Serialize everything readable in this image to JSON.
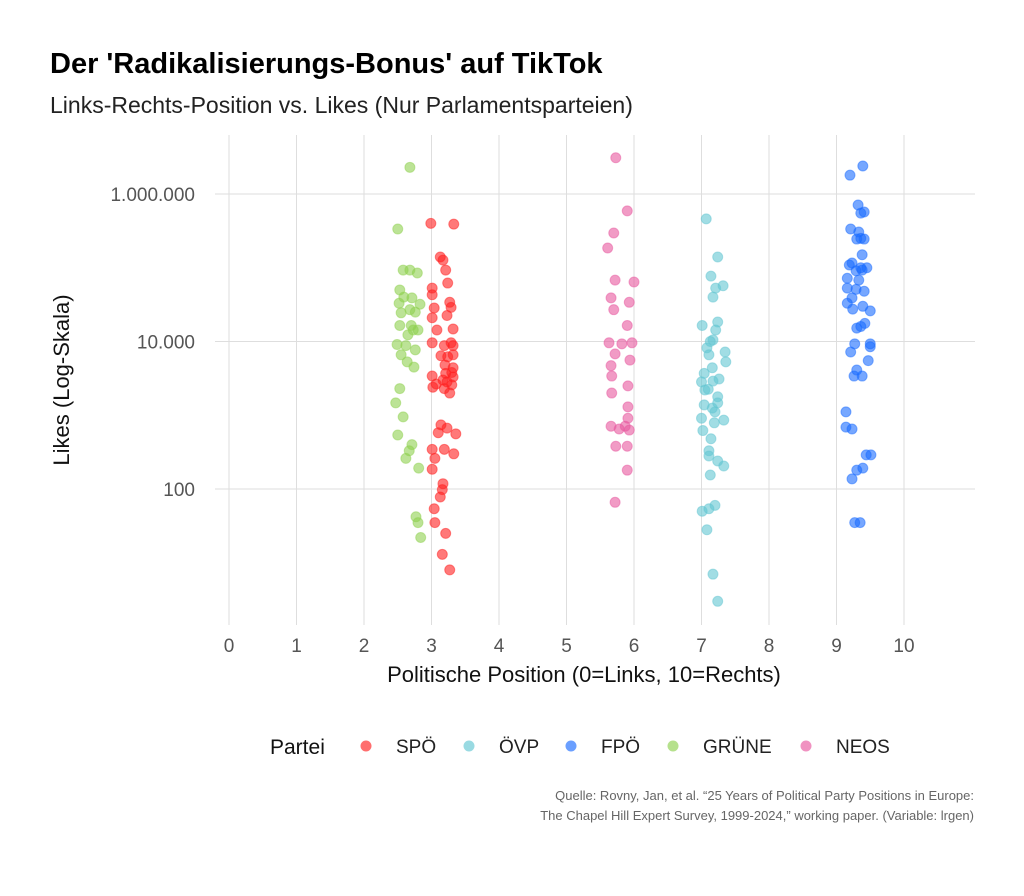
{
  "title": "Der 'Radikalisierungs-Bonus' auf TikTok",
  "subtitle": "Links-Rechts-Position vs. Likes (Nur Parlamentsparteien)",
  "caption_line1": "Quelle: Rovny, Jan, et al. “25 Years of Political Party Positions in Europe:",
  "caption_line2": "The Chapel Hill Expert Survey, 1999-2024,” working paper. (Variable: lrgen)",
  "chart_data": {
    "type": "scatter",
    "xlabel": "Politische Position (0=Links, 10=Rechts)",
    "ylabel": "Likes (Log-Skala)",
    "x_ticks": [
      "0",
      "1",
      "2",
      "3",
      "4",
      "5",
      "6",
      "7",
      "8",
      "9",
      "10"
    ],
    "x_tick_values": [
      0,
      1,
      2,
      3,
      4,
      5,
      6,
      7,
      8,
      9,
      10
    ],
    "y_ticks": [
      "1.000.000",
      "10.000",
      "100"
    ],
    "y_tick_values": [
      1000000,
      10000,
      100
    ],
    "y_scale": "log10",
    "xlim": [
      -0.2,
      11
    ],
    "ylim": [
      1.5,
      6300000
    ],
    "grid": true,
    "legend_title": "Partei",
    "legend_position": "bottom",
    "series": [
      {
        "name": "SPÖ",
        "color": "#ff2020",
        "points": [
          [
            2.99,
            400000
          ],
          [
            3.33,
            390000
          ],
          [
            3.13,
            140000
          ],
          [
            3.17,
            127000
          ],
          [
            3.21,
            93000
          ],
          [
            3.24,
            62000
          ],
          [
            3.01,
            53000
          ],
          [
            3.01,
            43000
          ],
          [
            3.27,
            34000
          ],
          [
            3.04,
            28500
          ],
          [
            3.29,
            29000
          ],
          [
            3.23,
            22500
          ],
          [
            3.01,
            21000
          ],
          [
            3.32,
            14800
          ],
          [
            3.08,
            14300
          ],
          [
            3.01,
            9600
          ],
          [
            3.29,
            9600
          ],
          [
            3.32,
            8800
          ],
          [
            3.19,
            8800
          ],
          [
            3.24,
            6200
          ],
          [
            3.32,
            6600
          ],
          [
            3.14,
            6400
          ],
          [
            3.21,
            3700
          ],
          [
            3.3,
            3800
          ],
          [
            3.2,
            4800
          ],
          [
            3.32,
            4400
          ],
          [
            3.01,
            3400
          ],
          [
            3.07,
            2650
          ],
          [
            3.17,
            3000
          ],
          [
            3.19,
            2300
          ],
          [
            3.3,
            2580
          ],
          [
            3.23,
            2830
          ],
          [
            3.02,
            2400
          ],
          [
            3.32,
            3300
          ],
          [
            3.27,
            2000
          ],
          [
            3.14,
            740
          ],
          [
            3.23,
            670
          ],
          [
            3.36,
            560
          ],
          [
            3.1,
            580
          ],
          [
            3.01,
            345
          ],
          [
            3.19,
            345
          ],
          [
            3.05,
            260
          ],
          [
            3.33,
            300
          ],
          [
            3.01,
            185
          ],
          [
            3.17,
            118
          ],
          [
            3.16,
            98
          ],
          [
            3.04,
            54
          ],
          [
            3.13,
            78
          ],
          [
            3.05,
            35
          ],
          [
            3.21,
            25
          ],
          [
            3.16,
            13
          ],
          [
            3.27,
            8
          ]
        ]
      },
      {
        "name": "ÖVP",
        "color": "#63c6d2",
        "points": [
          [
            7.07,
            460000
          ],
          [
            7.24,
            140000
          ],
          [
            7.14,
            77000
          ],
          [
            7.21,
            53000
          ],
          [
            7.32,
            57000
          ],
          [
            7.17,
            40000
          ],
          [
            7.01,
            16500
          ],
          [
            7.24,
            18400
          ],
          [
            7.21,
            14300
          ],
          [
            7.17,
            10500
          ],
          [
            7.13,
            10000
          ],
          [
            7.08,
            8200
          ],
          [
            7.35,
            7200
          ],
          [
            7.11,
            6600
          ],
          [
            7.36,
            5300
          ],
          [
            7.16,
            4400
          ],
          [
            7.04,
            3700
          ],
          [
            7.26,
            3100
          ],
          [
            7.0,
            2830
          ],
          [
            7.17,
            2900
          ],
          [
            7.05,
            2200
          ],
          [
            7.24,
            1780
          ],
          [
            7.1,
            2250
          ],
          [
            7.24,
            1470
          ],
          [
            7.04,
            1380
          ],
          [
            7.2,
            1110
          ],
          [
            7.16,
            1250
          ],
          [
            7.0,
            910
          ],
          [
            7.33,
            860
          ],
          [
            7.19,
            790
          ],
          [
            7.02,
            620
          ],
          [
            7.14,
            480
          ],
          [
            7.11,
            330
          ],
          [
            7.11,
            280
          ],
          [
            7.24,
            240
          ],
          [
            7.33,
            205
          ],
          [
            7.13,
            155
          ],
          [
            7.2,
            60
          ],
          [
            7.01,
            50
          ],
          [
            7.11,
            54
          ],
          [
            7.08,
            28
          ],
          [
            7.17,
            7
          ],
          [
            7.24,
            3
          ]
        ]
      },
      {
        "name": "FPÖ",
        "color": "#1a6cff",
        "points": [
          [
            9.39,
            2400000
          ],
          [
            9.2,
            1800000
          ],
          [
            9.32,
            710000
          ],
          [
            9.36,
            550000
          ],
          [
            9.41,
            570000
          ],
          [
            9.21,
            335000
          ],
          [
            9.33,
            305000
          ],
          [
            9.36,
            250000
          ],
          [
            9.3,
            245000
          ],
          [
            9.41,
            245000
          ],
          [
            9.38,
            150000
          ],
          [
            9.23,
            116000
          ],
          [
            9.19,
            109000
          ],
          [
            9.45,
            100000
          ],
          [
            9.36,
            100000
          ],
          [
            9.29,
            91000
          ],
          [
            9.16,
            72000
          ],
          [
            9.33,
            68000
          ],
          [
            9.38,
            93000
          ],
          [
            9.16,
            53000
          ],
          [
            9.29,
            51000
          ],
          [
            9.41,
            48000
          ],
          [
            9.23,
            39000
          ],
          [
            9.16,
            33000
          ],
          [
            9.39,
            30000
          ],
          [
            9.24,
            27500
          ],
          [
            9.5,
            26000
          ],
          [
            9.42,
            17600
          ],
          [
            9.3,
            15200
          ],
          [
            9.36,
            16000
          ],
          [
            9.27,
            9300
          ],
          [
            9.21,
            7200
          ],
          [
            9.5,
            8500
          ],
          [
            9.5,
            9300
          ],
          [
            9.47,
            5500
          ],
          [
            9.3,
            4100
          ],
          [
            9.38,
            3400
          ],
          [
            9.26,
            3400
          ],
          [
            9.14,
            1110
          ],
          [
            9.14,
            690
          ],
          [
            9.23,
            650
          ],
          [
            9.44,
            290
          ],
          [
            9.51,
            290
          ],
          [
            9.39,
            192
          ],
          [
            9.3,
            180
          ],
          [
            9.23,
            137
          ],
          [
            9.27,
            35
          ],
          [
            9.35,
            35
          ]
        ]
      },
      {
        "name": "GRÜNE",
        "color": "#8fd150",
        "points": [
          [
            2.68,
            2300000
          ],
          [
            2.5,
            335000
          ],
          [
            2.58,
            93000
          ],
          [
            2.68,
            93000
          ],
          [
            2.79,
            85000
          ],
          [
            2.53,
            50000
          ],
          [
            2.59,
            40000
          ],
          [
            2.71,
            39000
          ],
          [
            2.52,
            33000
          ],
          [
            2.68,
            27000
          ],
          [
            2.55,
            24500
          ],
          [
            2.76,
            25000
          ],
          [
            2.83,
            32000
          ],
          [
            2.7,
            16500
          ],
          [
            2.53,
            16500
          ],
          [
            2.73,
            14300
          ],
          [
            2.65,
            12300
          ],
          [
            2.8,
            14300
          ],
          [
            2.49,
            9100
          ],
          [
            2.62,
            8800
          ],
          [
            2.55,
            6600
          ],
          [
            2.76,
            7700
          ],
          [
            2.64,
            5300
          ],
          [
            2.74,
            4500
          ],
          [
            2.53,
            2300
          ],
          [
            2.47,
            1470
          ],
          [
            2.58,
            950
          ],
          [
            2.5,
            540
          ],
          [
            2.71,
            400
          ],
          [
            2.67,
            330
          ],
          [
            2.62,
            260
          ],
          [
            2.81,
            192
          ],
          [
            2.77,
            42
          ],
          [
            2.8,
            35
          ],
          [
            2.84,
            22
          ]
        ]
      },
      {
        "name": "NEOS",
        "color": "#e8589f",
        "points": [
          [
            5.73,
            3100000
          ],
          [
            5.9,
            590000
          ],
          [
            5.7,
            296000
          ],
          [
            5.61,
            185000
          ],
          [
            5.72,
            68000
          ],
          [
            6.0,
            64000
          ],
          [
            5.66,
            39000
          ],
          [
            5.93,
            34000
          ],
          [
            5.7,
            27000
          ],
          [
            5.9,
            16500
          ],
          [
            5.63,
            9600
          ],
          [
            5.82,
            9300
          ],
          [
            5.97,
            9600
          ],
          [
            5.72,
            6800
          ],
          [
            5.94,
            5600
          ],
          [
            5.66,
            4700
          ],
          [
            5.67,
            3400
          ],
          [
            5.91,
            2500
          ],
          [
            5.67,
            2000
          ],
          [
            5.91,
            1300
          ],
          [
            5.91,
            910
          ],
          [
            5.87,
            710
          ],
          [
            5.66,
            710
          ],
          [
            5.78,
            650
          ],
          [
            5.93,
            630
          ],
          [
            5.73,
            380
          ],
          [
            5.9,
            380
          ],
          [
            5.9,
            180
          ],
          [
            5.72,
            66
          ]
        ]
      }
    ]
  }
}
